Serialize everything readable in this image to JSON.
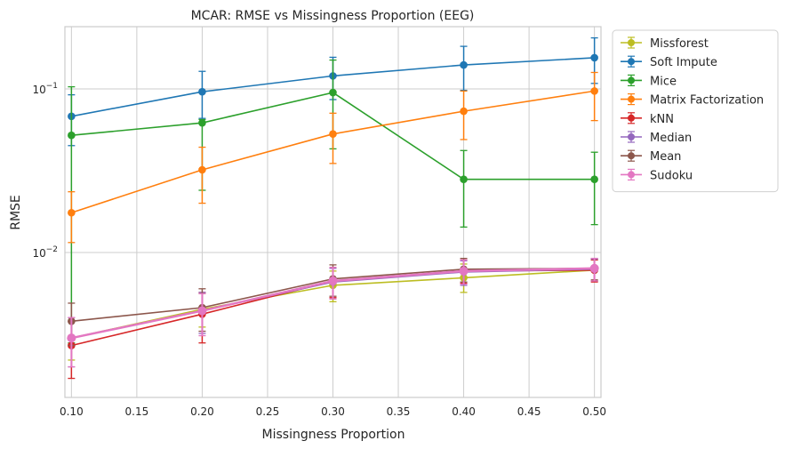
{
  "chart_data": {
    "type": "line",
    "title": "MCAR: RMSE vs Missingness Proportion (EEG)",
    "xlabel": "Missingness Proportion",
    "ylabel": "RMSE",
    "yscale": "log",
    "xlim": [
      0.095,
      0.505
    ],
    "ylim": [
      0.0013,
      0.24
    ],
    "xticks": [
      "0.10",
      "0.15",
      "0.20",
      "0.25",
      "0.30",
      "0.35",
      "0.40",
      "0.45",
      "0.50"
    ],
    "xtick_values": [
      0.1,
      0.15,
      0.2,
      0.25,
      0.3,
      0.35,
      0.4,
      0.45,
      0.5
    ],
    "yticks": [
      {
        "value": 0.01,
        "base": "10",
        "exp": "−2"
      },
      {
        "value": 0.1,
        "base": "10",
        "exp": "−1"
      }
    ],
    "grid": true,
    "legend_position": "outside-top-right",
    "x": [
      0.1,
      0.2,
      0.3,
      0.4,
      0.5
    ],
    "series": [
      {
        "name": "Missforest",
        "color": "#bcbd22",
        "values": [
          0.003,
          0.0045,
          0.0063,
          0.007,
          0.0078
        ],
        "lower": [
          0.0022,
          0.0035,
          0.005,
          0.0057,
          0.0067
        ],
        "upper": [
          0.0038,
          0.0056,
          0.0077,
          0.0085,
          0.009
        ]
      },
      {
        "name": "Soft Impute",
        "color": "#1f77b4",
        "values": [
          0.068,
          0.096,
          0.12,
          0.14,
          0.155
        ],
        "lower": [
          0.045,
          0.066,
          0.086,
          0.098,
          0.108
        ],
        "upper": [
          0.092,
          0.128,
          0.156,
          0.182,
          0.205
        ]
      },
      {
        "name": "Mice",
        "color": "#2ca02c",
        "values": [
          0.052,
          0.062,
          0.095,
          0.028,
          0.028
        ],
        "lower": [
          0.0028,
          0.024,
          0.043,
          0.0143,
          0.0148
        ],
        "upper": [
          0.103,
          0.065,
          0.15,
          0.042,
          0.041
        ]
      },
      {
        "name": "Matrix Factorization",
        "color": "#ff7f0e",
        "values": [
          0.0175,
          0.032,
          0.053,
          0.073,
          0.097
        ],
        "lower": [
          0.0115,
          0.02,
          0.035,
          0.049,
          0.064
        ],
        "upper": [
          0.0235,
          0.044,
          0.071,
          0.097,
          0.126
        ]
      },
      {
        "name": "kNN",
        "color": "#d62728",
        "values": [
          0.0027,
          0.0042,
          0.0067,
          0.0077,
          0.0078
        ],
        "lower": [
          0.0017,
          0.0028,
          0.0053,
          0.0065,
          0.0066
        ],
        "upper": [
          0.0038,
          0.0057,
          0.0081,
          0.009,
          0.009
        ]
      },
      {
        "name": "Median",
        "color": "#9467bd",
        "values": [
          0.003,
          0.0044,
          0.0066,
          0.0076,
          0.0079
        ],
        "lower": [
          0.002,
          0.0032,
          0.0052,
          0.0063,
          0.0067
        ],
        "upper": [
          0.004,
          0.0057,
          0.008,
          0.0089,
          0.0091
        ]
      },
      {
        "name": "Mean",
        "color": "#8c564b",
        "values": [
          0.0038,
          0.0046,
          0.0069,
          0.0079,
          0.008
        ],
        "lower": [
          0.0027,
          0.0033,
          0.0054,
          0.0066,
          0.0068
        ],
        "upper": [
          0.0049,
          0.006,
          0.0084,
          0.0092,
          0.0092
        ]
      },
      {
        "name": "Sudoku",
        "color": "#e377c2",
        "values": [
          0.003,
          0.0044,
          0.0067,
          0.0077,
          0.008
        ],
        "lower": [
          0.002,
          0.0031,
          0.0052,
          0.0064,
          0.0067
        ],
        "upper": [
          0.004,
          0.0056,
          0.0081,
          0.009,
          0.0092
        ]
      }
    ]
  }
}
